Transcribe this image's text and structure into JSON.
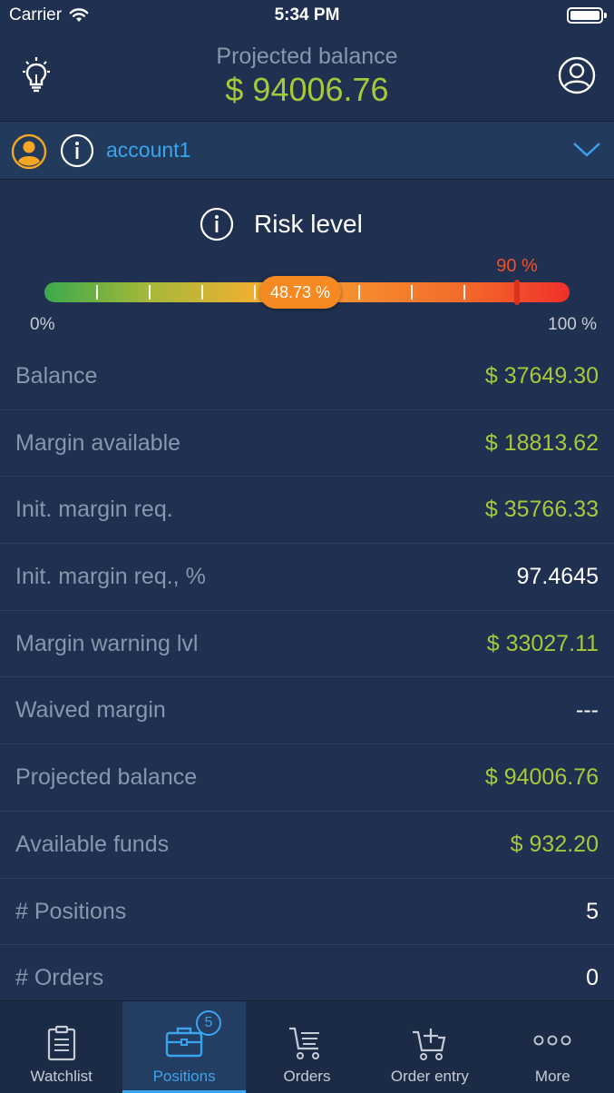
{
  "status": {
    "carrier": "Carrier",
    "time": "5:34 PM"
  },
  "header": {
    "title": "Projected balance",
    "value": "$ 94006.76"
  },
  "account": {
    "name": "account1"
  },
  "risk": {
    "title": "Risk level",
    "value_label": "48.73 %",
    "value": 48.73,
    "limit_label": "90 %",
    "limit": 90,
    "min_label": "0%",
    "max_label": "100 %"
  },
  "rows": [
    {
      "label": "Balance",
      "value": "$ 37649.30",
      "color": "#a6c93c"
    },
    {
      "label": "Margin available",
      "value": "$ 18813.62",
      "color": "#a6c93c"
    },
    {
      "label": "Init. margin req.",
      "value": "$ 35766.33",
      "color": "#a6c93c"
    },
    {
      "label": "Init. margin req., %",
      "value": "97.4645",
      "color": "#ffffff"
    },
    {
      "label": "Margin warning lvl",
      "value": "$ 33027.11",
      "color": "#a6c93c"
    },
    {
      "label": "Waived margin",
      "value": "---",
      "color": "#ffffff"
    },
    {
      "label": "Projected balance",
      "value": "$ 94006.76",
      "color": "#a6c93c"
    },
    {
      "label": "Available funds",
      "value": "$ 932.20",
      "color": "#a6c93c"
    },
    {
      "label": "# Positions",
      "value": "5",
      "color": "#ffffff"
    },
    {
      "label": "# Orders",
      "value": "0",
      "color": "#ffffff"
    }
  ],
  "tabs": [
    {
      "label": "Watchlist",
      "icon": "clipboard-icon"
    },
    {
      "label": "Positions",
      "icon": "briefcase-icon",
      "badge": "5",
      "active": true
    },
    {
      "label": "Orders",
      "icon": "cart-list-icon"
    },
    {
      "label": "Order entry",
      "icon": "cart-add-icon"
    },
    {
      "label": "More",
      "icon": "more-dots-icon"
    }
  ],
  "colors": {
    "background": "#1f3050",
    "accent_blue": "#3aa5ef",
    "value_green": "#a6c93c",
    "label_gray": "#8797ad",
    "risk_limit_red": "#f0502a",
    "risk_pill_orange": "#f58a23"
  }
}
